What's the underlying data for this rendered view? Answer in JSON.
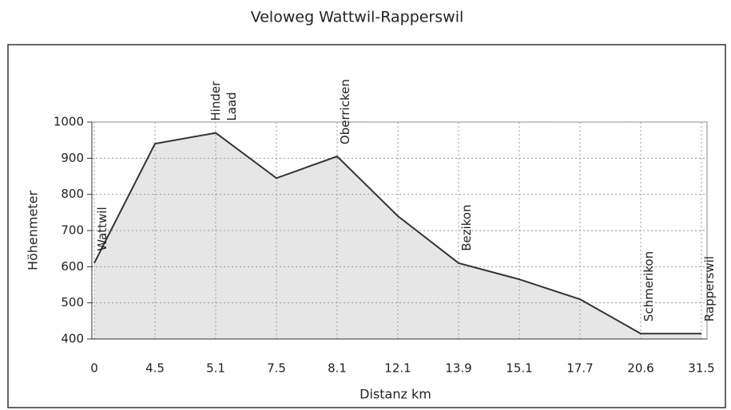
{
  "chart_data": {
    "type": "area",
    "title": "Veloweg Wattwil-Rapperswil",
    "x_label": "Distanz km",
    "y_label": "Höhenmeter",
    "categories": [
      "0",
      "4.5",
      "5.1",
      "7.5",
      "8.1",
      "12.1",
      "13.9",
      "15.1",
      "17.7",
      "20.6",
      "31.5"
    ],
    "values": [
      610,
      940,
      970,
      845,
      905,
      740,
      610,
      565,
      510,
      415,
      415
    ],
    "place_labels": [
      "Wattwil",
      null,
      "Hinder Laad",
      null,
      "Oberricken",
      null,
      "Bezikon",
      null,
      null,
      "Schmerikon",
      "Rapperswil"
    ],
    "color": "#333333",
    "fill": "#e6e6e6",
    "ylim": [
      400,
      1000
    ],
    "yticks": [
      400,
      500,
      600,
      700,
      800,
      900,
      1000
    ],
    "grid": true
  }
}
